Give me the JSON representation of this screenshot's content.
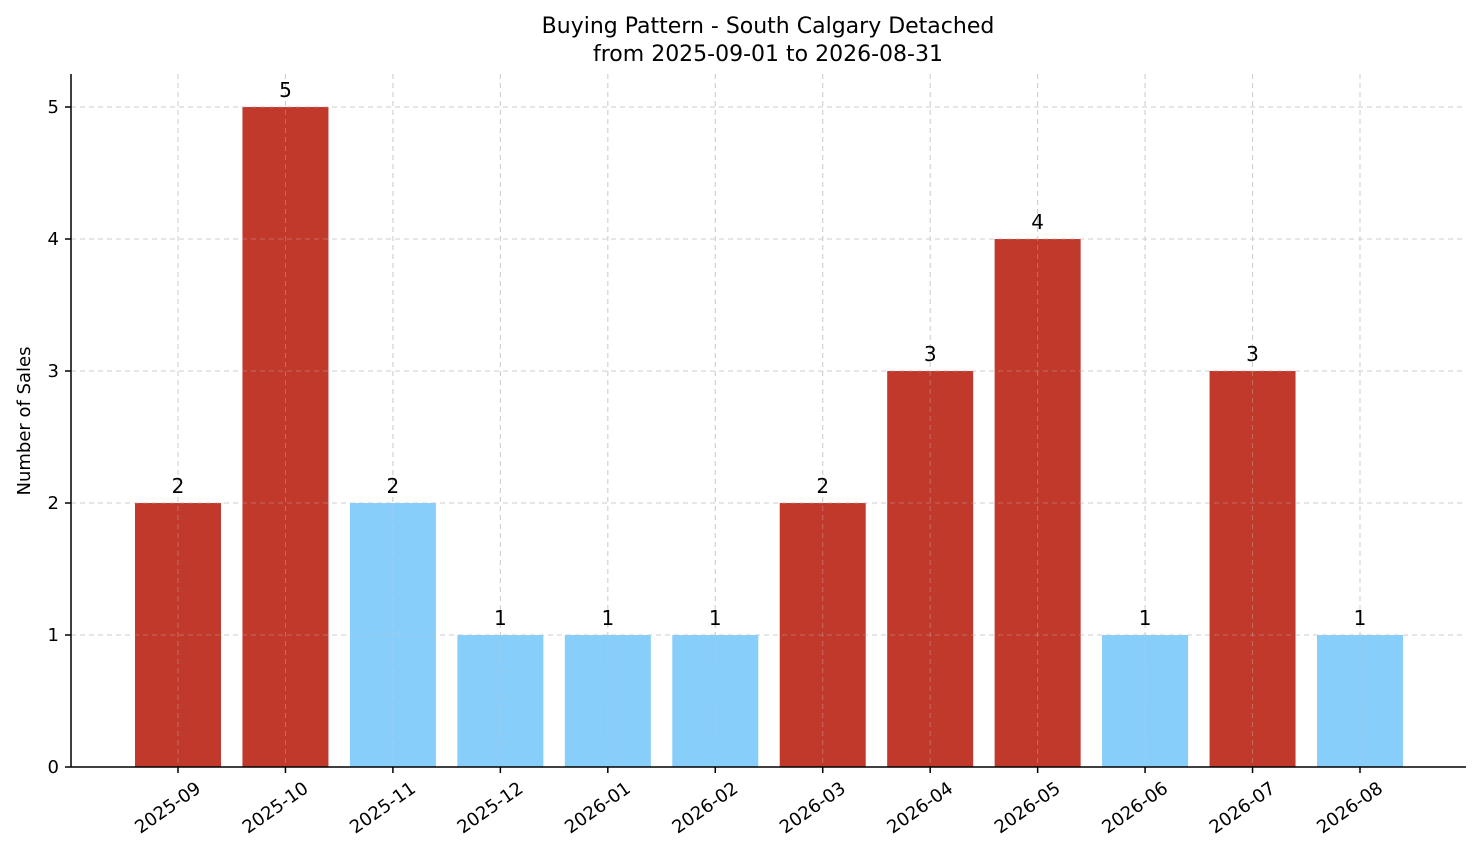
{
  "chart_data": {
    "type": "bar",
    "title": "Buying Pattern - South Calgary Detached",
    "subtitle": "from 2025-09-01 to 2026-08-31",
    "xlabel": "",
    "ylabel": "Number of Sales",
    "ylim": [
      0,
      5.25
    ],
    "yticks": [
      0,
      1,
      2,
      3,
      4,
      5
    ],
    "grid": true,
    "categories": [
      "2025-09",
      "2025-10",
      "2025-11",
      "2025-12",
      "2026-01",
      "2026-02",
      "2026-03",
      "2026-04",
      "2026-05",
      "2026-06",
      "2026-07",
      "2026-08"
    ],
    "values": [
      2,
      5,
      2,
      1,
      1,
      1,
      2,
      3,
      4,
      1,
      3,
      1
    ],
    "colors": [
      "#c0392b",
      "#c0392b",
      "#87cefa",
      "#87cefa",
      "#87cefa",
      "#87cefa",
      "#c0392b",
      "#c0392b",
      "#c0392b",
      "#87cefa",
      "#c0392b",
      "#87cefa"
    ]
  }
}
